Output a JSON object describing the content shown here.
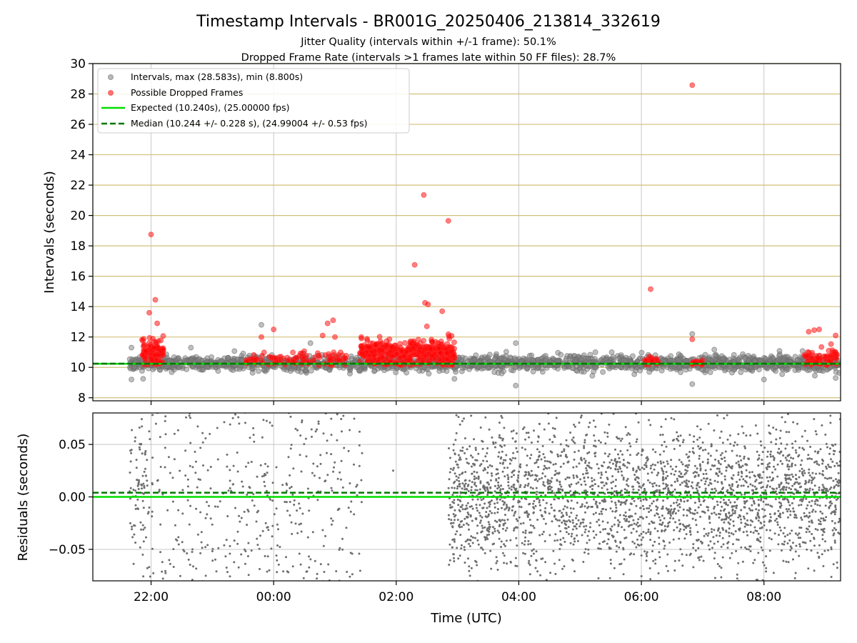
{
  "chart_data": [
    {
      "type": "scatter",
      "title": "Timestamp Intervals - BR001G_20250406_213814_332619",
      "subtitle_1": "Jitter Quality (intervals within +/-1 frame): 50.1%",
      "subtitle_2": "Dropped Frame Rate (intervals >1 frames late within 50 FF files): 28.7%",
      "xlabel": "",
      "ylabel": "Intervals (seconds)",
      "x_range_hours": [
        -2.95,
        9.25
      ],
      "ylim": [
        7.8,
        30
      ],
      "y_ticks": [
        8,
        10,
        12,
        14,
        16,
        18,
        20,
        22,
        24,
        26,
        28,
        30
      ],
      "y_tick_labels": [
        "8",
        "10",
        "12",
        "14",
        "16",
        "18",
        "20",
        "22",
        "24",
        "26",
        "28",
        "30"
      ],
      "grid": true,
      "legend_placement": "top-left",
      "legend": [
        "Intervals, max (28.583s), min (8.800s)",
        "Possible Dropped Frames",
        "Expected (10.240s), (25.00000 fps)",
        "Median (10.244 +/- 0.228 s), (24.99004 +/- 0.53 fps)"
      ],
      "expected": 10.24,
      "median": 10.244,
      "series": [
        {
          "name": "Intervals, max (28.583s), min (8.800s)",
          "color": "#808080",
          "points": [
            [
              -2.32,
              11.3
            ],
            [
              -2.32,
              9.2
            ],
            [
              -2.13,
              9.25
            ],
            [
              -1.35,
              11.3
            ],
            [
              -0.2,
              12.8
            ],
            [
              0.6,
              11.6
            ],
            [
              1.02,
              10.2
            ],
            [
              2.95,
              9.25
            ],
            [
              3.95,
              8.8
            ],
            [
              3.95,
              11.6
            ],
            [
              5.25,
              11.0
            ],
            [
              5.2,
              9.45
            ],
            [
              6.13,
              9.7
            ],
            [
              6.83,
              12.2
            ],
            [
              6.83,
              8.9
            ],
            [
              8.0,
              9.2
            ],
            [
              9.17,
              9.3
            ],
            [
              3.3,
              10.8
            ],
            [
              4.5,
              10.5
            ],
            [
              7.2,
              10.8
            ],
            [
              8.6,
              10.7
            ]
          ],
          "clusters": [
            [
              -2.35,
              9.25,
              10.28,
              0.24,
              2000
            ]
          ]
        },
        {
          "name": "Possible Dropped Frames",
          "color": "#ff0000",
          "points": [
            [
              -2.0,
              18.75
            ],
            [
              -2.03,
              13.6
            ],
            [
              -1.93,
              14.45
            ],
            [
              -1.9,
              12.9
            ],
            [
              -0.2,
              12.0
            ],
            [
              0.0,
              12.5
            ],
            [
              0.8,
              12.1
            ],
            [
              0.88,
              12.9
            ],
            [
              0.97,
              13.1
            ],
            [
              1.0,
              12.0
            ],
            [
              2.3,
              16.75
            ],
            [
              2.45,
              21.35
            ],
            [
              2.47,
              14.25
            ],
            [
              2.52,
              14.15
            ],
            [
              2.75,
              13.7
            ],
            [
              2.85,
              19.65
            ],
            [
              6.15,
              15.15
            ],
            [
              6.83,
              28.58
            ],
            [
              6.83,
              11.85
            ],
            [
              8.73,
              12.35
            ],
            [
              8.82,
              12.45
            ],
            [
              8.9,
              12.5
            ],
            [
              9.17,
              12.1
            ],
            [
              2.5,
              12.7
            ]
          ],
          "clusters": [
            [
              -2.15,
              -1.8,
              10.9,
              0.5,
              110
            ],
            [
              -0.5,
              1.2,
              10.5,
              0.25,
              90
            ],
            [
              1.4,
              2.95,
              11.0,
              0.45,
              420
            ],
            [
              6.05,
              6.3,
              10.35,
              0.15,
              20
            ],
            [
              6.8,
              7.0,
              10.3,
              0.08,
              20
            ],
            [
              8.65,
              9.2,
              10.6,
              0.35,
              70
            ]
          ]
        }
      ]
    },
    {
      "type": "scatter",
      "title": "",
      "xlabel": "Time (UTC)",
      "ylabel": "Residuals (seconds)",
      "x_range_hours": [
        -2.95,
        9.25
      ],
      "x_ticks_hours": [
        -2,
        0,
        2,
        4,
        6,
        8
      ],
      "x_tick_labels": [
        "22:00",
        "00:00",
        "02:00",
        "04:00",
        "06:00",
        "08:00"
      ],
      "ylim": [
        -0.08,
        0.08
      ],
      "y_ticks": [
        -0.05,
        0.0,
        0.05
      ],
      "y_tick_labels": [
        "−0.05",
        "0.00",
        "0.05"
      ],
      "grid": true,
      "expected": 0.0,
      "median": 0.004,
      "series": [
        {
          "name": "",
          "color": "#6e6e6e",
          "clusters": [
            [
              -2.35,
              -2.05,
              0.0,
              0.035,
              80,
              0.0
            ],
            [
              -2.05,
              1.45,
              0.0,
              0.06,
              420,
              0.0
            ],
            [
              2.85,
              9.25,
              0.0,
              0.035,
              2700,
              0.0
            ]
          ],
          "points": [
            [
              1.95,
              0.025
            ]
          ]
        }
      ]
    }
  ],
  "colors": {
    "expected_line": "#00dd00",
    "median_line": "#007700",
    "grid": "#b0b0b0",
    "gold_grid": "#d2bf7a"
  }
}
